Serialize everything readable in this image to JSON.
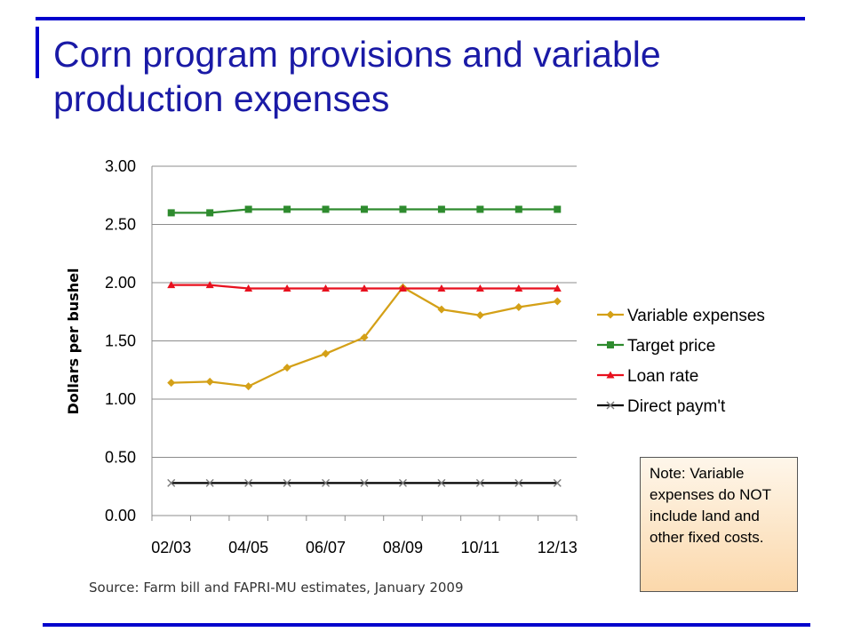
{
  "slide": {
    "title": "Corn program provisions and variable production expenses",
    "source": "Source: Farm bill and FAPRI-MU estimates, January 2009",
    "note": "Note: Variable expenses do NOT include land and other fixed costs."
  },
  "colors": {
    "rule": "#0000cc",
    "title": "#1a1aa6"
  },
  "chart_data": {
    "type": "line",
    "ylabel": "Dollars per bushel",
    "xlabel": "",
    "ylim": [
      0,
      3
    ],
    "y_ticks": [
      "0.00",
      "0.50",
      "1.00",
      "1.50",
      "2.00",
      "2.50",
      "3.00"
    ],
    "x": [
      "02/03",
      "03/04",
      "04/05",
      "05/06",
      "06/07",
      "07/08",
      "08/09",
      "09/10",
      "10/11",
      "11/12",
      "12/13"
    ],
    "x_tick_labels": [
      "02/03",
      "04/05",
      "06/07",
      "08/09",
      "10/11",
      "12/13"
    ],
    "grid": "horizontal",
    "legend_position": "right",
    "series": [
      {
        "name": "Variable expenses",
        "color": "#d4a017",
        "marker": "diamond",
        "values": [
          1.14,
          1.15,
          1.11,
          1.27,
          1.39,
          1.53,
          1.96,
          1.77,
          1.72,
          1.79,
          1.84
        ]
      },
      {
        "name": "Target price",
        "color": "#2e8b2e",
        "marker": "square",
        "values": [
          2.6,
          2.6,
          2.63,
          2.63,
          2.63,
          2.63,
          2.63,
          2.63,
          2.63,
          2.63,
          2.63
        ]
      },
      {
        "name": "Loan rate",
        "color": "#e8101e",
        "marker": "triangle",
        "values": [
          1.98,
          1.98,
          1.95,
          1.95,
          1.95,
          1.95,
          1.95,
          1.95,
          1.95,
          1.95,
          1.95
        ]
      },
      {
        "name": "Direct paym't",
        "color": "#000000",
        "marker": "x",
        "values": [
          0.28,
          0.28,
          0.28,
          0.28,
          0.28,
          0.28,
          0.28,
          0.28,
          0.28,
          0.28,
          0.28
        ]
      }
    ]
  }
}
